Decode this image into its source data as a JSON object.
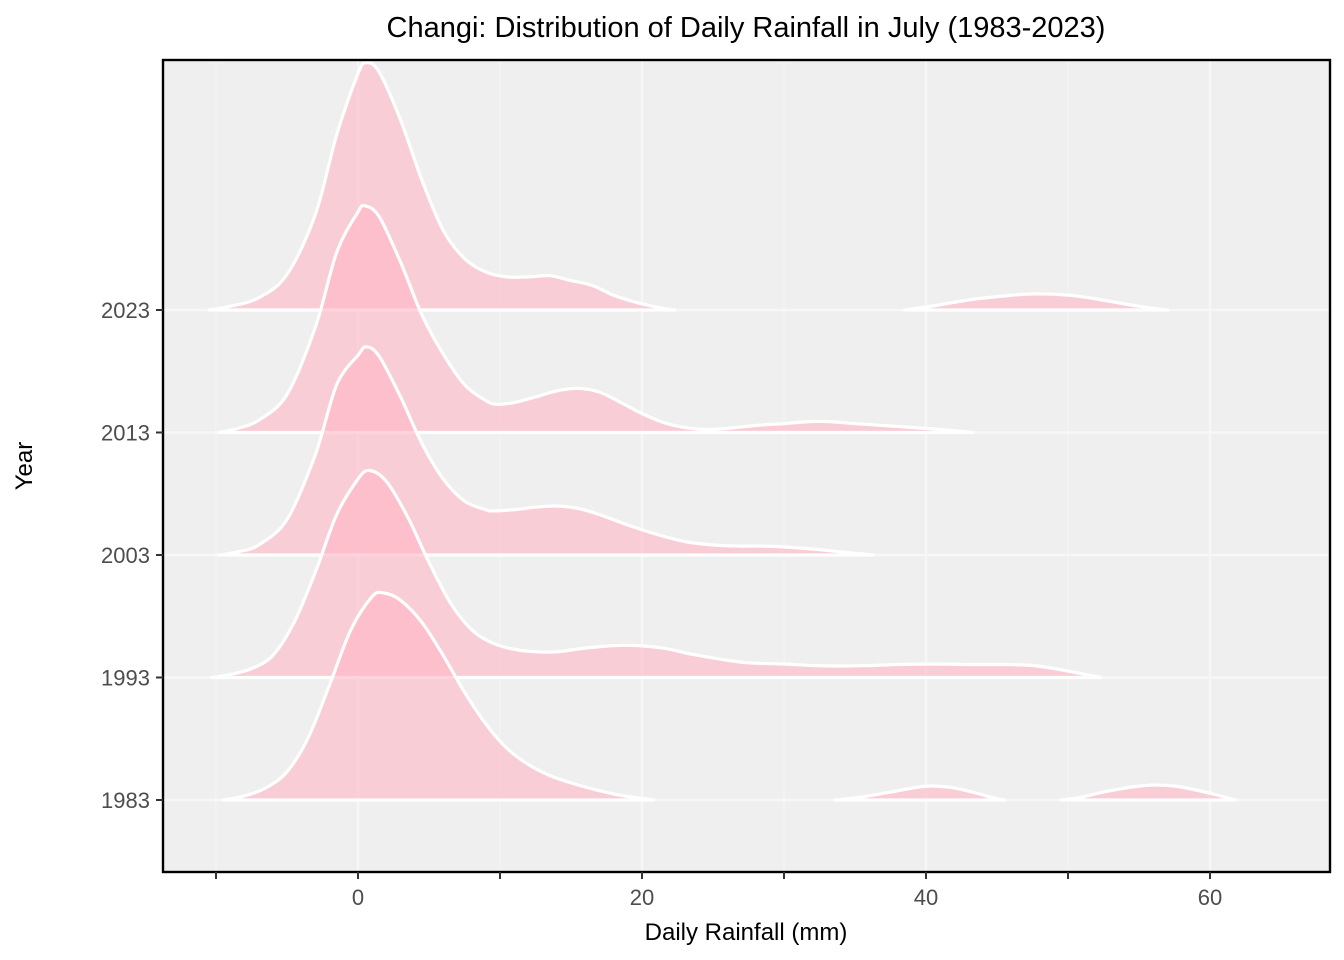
{
  "figure": {
    "title": "Changi: Distribution of Daily Rainfall in July (1983-2023)",
    "x_axis": {
      "label": "Daily Rainfall (mm)",
      "major_ticks": [
        0,
        20,
        40,
        60
      ],
      "major_tick_labels": [
        "0",
        "20",
        "40",
        "60"
      ],
      "minor_ticks": [
        -10,
        10,
        30,
        50
      ],
      "range_mm": [
        -13.7,
        68.4
      ]
    },
    "y_axis": {
      "label": "Year",
      "categories_top_to_bottom": [
        "2023",
        "2013",
        "2003",
        "1993",
        "1983"
      ]
    },
    "colors": {
      "panel_background": "#efefef",
      "grid_major": "#f7f7f7",
      "grid_minor": "#f3f3f3",
      "panel_border": "#000000",
      "ridge_fill": "rgba(255,181,197,0.6)",
      "ridge_outline": "#ffffff",
      "tick_text": "#4d4d4d",
      "title_text": "#000000"
    }
  },
  "chart_data": {
    "type": "area",
    "subtype": "ridgeline",
    "title": "Changi: Distribution of Daily Rainfall in July (1983-2023)",
    "xlabel": "Daily Rainfall (mm)",
    "ylabel": "Year",
    "x_unit": "mm of daily rainfall",
    "density_unit": "row-heights (1.0 = vertical gap between adjacent year baselines)",
    "ridge_vertical_scale": 2.0,
    "series": [
      {
        "year": "2023",
        "segments": [
          [
            [
              -10.5,
              0
            ],
            [
              -9,
              0.03
            ],
            [
              -7,
              0.1
            ],
            [
              -5,
              0.29
            ],
            [
              -3,
              0.78
            ],
            [
              -1.5,
              1.43
            ],
            [
              0,
              1.93
            ],
            [
              0.6,
              2.02
            ],
            [
              1.5,
              1.94
            ],
            [
              3,
              1.55
            ],
            [
              4.5,
              1.06
            ],
            [
              6,
              0.65
            ],
            [
              7.5,
              0.42
            ],
            [
              9,
              0.31
            ],
            [
              10.5,
              0.27
            ],
            [
              12,
              0.27
            ],
            [
              13.5,
              0.28
            ],
            [
              15,
              0.24
            ],
            [
              16.5,
              0.2
            ],
            [
              18,
              0.12
            ],
            [
              19.5,
              0.065
            ],
            [
              21,
              0.025
            ],
            [
              22.3,
              0
            ]
          ],
          [
            [
              38.5,
              0
            ],
            [
              40.5,
              0.033
            ],
            [
              43,
              0.082
            ],
            [
              45.5,
              0.114
            ],
            [
              47.5,
              0.131
            ],
            [
              50,
              0.122
            ],
            [
              52,
              0.09
            ],
            [
              54,
              0.049
            ],
            [
              55.8,
              0.016
            ],
            [
              57,
              0
            ]
          ]
        ]
      },
      {
        "year": "2013",
        "segments": [
          [
            [
              -9.8,
              0
            ],
            [
              -8.5,
              0.033
            ],
            [
              -7,
              0.1
            ],
            [
              -5,
              0.31
            ],
            [
              -3,
              0.86
            ],
            [
              -1.5,
              1.47
            ],
            [
              0,
              1.8
            ],
            [
              0.5,
              1.85
            ],
            [
              1.5,
              1.76
            ],
            [
              3,
              1.39
            ],
            [
              4.5,
              0.96
            ],
            [
              6,
              0.64
            ],
            [
              7.5,
              0.39
            ],
            [
              9,
              0.26
            ],
            [
              9.8,
              0.23
            ],
            [
              11,
              0.245
            ],
            [
              12.5,
              0.29
            ],
            [
              14,
              0.34
            ],
            [
              15.5,
              0.36
            ],
            [
              17,
              0.33
            ],
            [
              18.5,
              0.245
            ],
            [
              20,
              0.155
            ],
            [
              21.5,
              0.082
            ],
            [
              23,
              0.041
            ],
            [
              24.5,
              0.025
            ],
            [
              26,
              0.033
            ],
            [
              28,
              0.057
            ],
            [
              30,
              0.073
            ],
            [
              32,
              0.09
            ],
            [
              33,
              0.09
            ],
            [
              35,
              0.073
            ],
            [
              37,
              0.057
            ],
            [
              39,
              0.041
            ],
            [
              41,
              0.025
            ],
            [
              43.3,
              0
            ]
          ]
        ]
      },
      {
        "year": "2003",
        "segments": [
          [
            [
              -9.8,
              0
            ],
            [
              -8.5,
              0.025
            ],
            [
              -7,
              0.082
            ],
            [
              -5,
              0.29
            ],
            [
              -3,
              0.82
            ],
            [
              -1.5,
              1.39
            ],
            [
              0,
              1.63
            ],
            [
              0.6,
              1.7
            ],
            [
              1.5,
              1.62
            ],
            [
              3,
              1.29
            ],
            [
              4.5,
              0.91
            ],
            [
              6,
              0.62
            ],
            [
              7.5,
              0.44
            ],
            [
              9,
              0.37
            ],
            [
              9.5,
              0.36
            ],
            [
              11,
              0.37
            ],
            [
              12.5,
              0.39
            ],
            [
              13.9,
              0.4
            ],
            [
              15.5,
              0.38
            ],
            [
              17,
              0.33
            ],
            [
              19,
              0.245
            ],
            [
              21,
              0.17
            ],
            [
              23,
              0.11
            ],
            [
              25,
              0.082
            ],
            [
              27,
              0.073
            ],
            [
              28.5,
              0.073
            ],
            [
              30,
              0.065
            ],
            [
              32,
              0.049
            ],
            [
              34,
              0.025
            ],
            [
              36.3,
              0
            ]
          ]
        ]
      },
      {
        "year": "1993",
        "segments": [
          [
            [
              -10.3,
              0
            ],
            [
              -9,
              0.025
            ],
            [
              -7.5,
              0.073
            ],
            [
              -6,
              0.18
            ],
            [
              -4.5,
              0.45
            ],
            [
              -3,
              0.86
            ],
            [
              -1.5,
              1.33
            ],
            [
              0,
              1.62
            ],
            [
              0.8,
              1.69
            ],
            [
              2,
              1.6
            ],
            [
              3.5,
              1.31
            ],
            [
              5,
              0.94
            ],
            [
              6.5,
              0.61
            ],
            [
              8,
              0.39
            ],
            [
              9.5,
              0.28
            ],
            [
              11,
              0.23
            ],
            [
              12.5,
              0.21
            ],
            [
              14,
              0.21
            ],
            [
              16,
              0.24
            ],
            [
              18,
              0.26
            ],
            [
              19.7,
              0.26
            ],
            [
              21.5,
              0.24
            ],
            [
              23.5,
              0.19
            ],
            [
              25.5,
              0.15
            ],
            [
              27.5,
              0.12
            ],
            [
              30,
              0.11
            ],
            [
              32,
              0.098
            ],
            [
              34,
              0.094
            ],
            [
              36,
              0.098
            ],
            [
              38,
              0.106
            ],
            [
              40.5,
              0.11
            ],
            [
              43,
              0.106
            ],
            [
              45.5,
              0.106
            ],
            [
              47.5,
              0.098
            ],
            [
              49,
              0.073
            ],
            [
              50.5,
              0.041
            ],
            [
              52.3,
              0
            ]
          ]
        ]
      },
      {
        "year": "1983",
        "segments": [
          [
            [
              -9.5,
              0
            ],
            [
              -8,
              0.033
            ],
            [
              -6.5,
              0.098
            ],
            [
              -5,
              0.23
            ],
            [
              -3.5,
              0.51
            ],
            [
              -2,
              0.94
            ],
            [
              -0.5,
              1.39
            ],
            [
              1,
              1.66
            ],
            [
              1.8,
              1.69
            ],
            [
              3,
              1.63
            ],
            [
              4.5,
              1.45
            ],
            [
              6,
              1.18
            ],
            [
              7.5,
              0.88
            ],
            [
              9,
              0.62
            ],
            [
              10.5,
              0.42
            ],
            [
              12,
              0.29
            ],
            [
              13.5,
              0.2
            ],
            [
              15,
              0.14
            ],
            [
              16.5,
              0.09
            ],
            [
              18,
              0.049
            ],
            [
              19.5,
              0.02
            ],
            [
              20.8,
              0
            ]
          ],
          [
            [
              33.6,
              0
            ],
            [
              35.5,
              0.025
            ],
            [
              37.5,
              0.065
            ],
            [
              39.5,
              0.106
            ],
            [
              40.5,
              0.114
            ],
            [
              42,
              0.098
            ],
            [
              43.5,
              0.057
            ],
            [
              44.8,
              0.016
            ],
            [
              45.5,
              0
            ]
          ],
          [
            [
              49.5,
              0
            ],
            [
              51,
              0.025
            ],
            [
              52.5,
              0.065
            ],
            [
              54.5,
              0.106
            ],
            [
              56,
              0.122
            ],
            [
              57.5,
              0.114
            ],
            [
              59,
              0.082
            ],
            [
              60.5,
              0.041
            ],
            [
              61.5,
              0.008
            ],
            [
              61.8,
              0
            ]
          ]
        ]
      }
    ]
  }
}
